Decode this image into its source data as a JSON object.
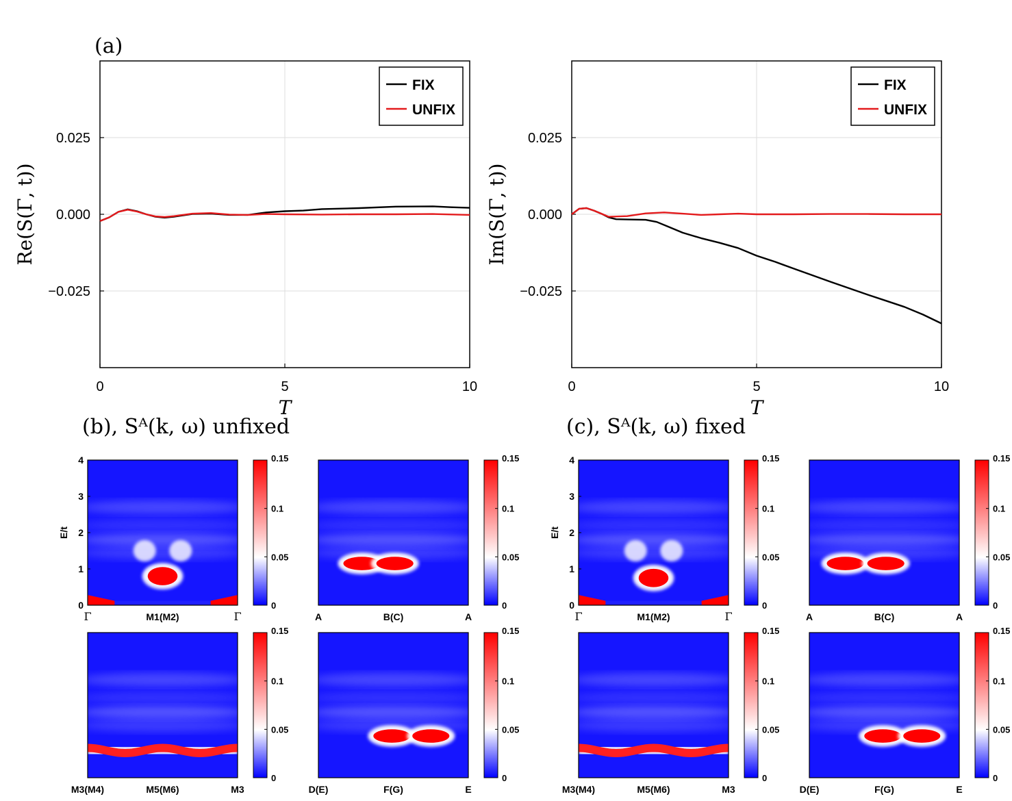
{
  "colors": {
    "fix": "#000000",
    "unfix": "#e31a1c",
    "cmap_low": "#0000ff",
    "cmap_mid": "#ffffff",
    "cmap_high": "#ff0000"
  },
  "panel_a_label": "(a)",
  "panel_b_label": "(b), Sᴬ(k, ω) unfixed",
  "panel_c_label": "(c), Sᴬ(k, ω) fixed",
  "chart_data": [
    {
      "type": "line",
      "id": "re",
      "xlabel": "T",
      "ylabel": "Re(S(Γ, t))",
      "xlim": [
        0,
        10
      ],
      "ylim": [
        -0.05,
        0.05
      ],
      "xticks": [
        "0",
        "5",
        "10"
      ],
      "yticks": [
        "0.025",
        "0.000",
        "−0.025"
      ],
      "grid": true,
      "legend_position": "top-right",
      "series": [
        {
          "name": "FIX",
          "color": "#000000",
          "x": [
            0,
            0.25,
            0.5,
            0.75,
            1.0,
            1.25,
            1.5,
            1.75,
            2.0,
            2.5,
            3.0,
            3.5,
            4.0,
            4.5,
            5.0,
            5.5,
            6.0,
            7.0,
            8.0,
            9.0,
            9.5,
            10.0
          ],
          "y": [
            -0.0022,
            -0.001,
            0.0008,
            0.0016,
            0.001,
            0.0,
            -0.0008,
            -0.0011,
            -0.0008,
            0.0001,
            0.0002,
            -0.0002,
            -0.0002,
            0.0006,
            0.001,
            0.0012,
            0.0017,
            0.002,
            0.0025,
            0.0026,
            0.0023,
            0.0021
          ]
        },
        {
          "name": "UNFIX",
          "color": "#e31a1c",
          "x": [
            0,
            0.25,
            0.5,
            0.75,
            1.0,
            1.25,
            1.5,
            1.75,
            2.0,
            2.5,
            3.0,
            3.5,
            4.0,
            4.5,
            5.0,
            6.0,
            7.0,
            8.0,
            9.0,
            10.0
          ],
          "y": [
            -0.0022,
            -0.001,
            0.0008,
            0.0015,
            0.0009,
            0.0,
            -0.0007,
            -0.0009,
            -0.0006,
            0.0002,
            0.0004,
            -0.0001,
            -0.0002,
            0.0001,
            0.0,
            -0.0001,
            0.0,
            0.0,
            0.0001,
            -0.0002
          ]
        }
      ]
    },
    {
      "type": "line",
      "id": "im",
      "xlabel": "T",
      "ylabel": "Im(S(Γ, t))",
      "xlim": [
        0,
        10
      ],
      "ylim": [
        -0.05,
        0.05
      ],
      "xticks": [
        "0",
        "5",
        "10"
      ],
      "yticks": [
        "0.025",
        "0.000",
        "−0.025"
      ],
      "grid": true,
      "legend_position": "top-right",
      "series": [
        {
          "name": "FIX",
          "color": "#000000",
          "x": [
            0,
            0.2,
            0.4,
            0.6,
            0.8,
            1.0,
            1.2,
            1.5,
            2.0,
            2.3,
            2.6,
            3.0,
            3.5,
            4.0,
            4.5,
            5.0,
            5.5,
            6.0,
            7.0,
            8.0,
            8.5,
            9.0,
            9.5,
            10.0
          ],
          "y": [
            0.0,
            0.0018,
            0.002,
            0.0012,
            0.0002,
            -0.001,
            -0.0016,
            -0.0017,
            -0.0018,
            -0.0025,
            -0.004,
            -0.006,
            -0.0078,
            -0.0093,
            -0.011,
            -0.0135,
            -0.0155,
            -0.0177,
            -0.022,
            -0.0262,
            -0.0282,
            -0.0302,
            -0.0327,
            -0.0356
          ]
        },
        {
          "name": "UNFIX",
          "color": "#e31a1c",
          "x": [
            0,
            0.2,
            0.4,
            0.6,
            0.8,
            1.0,
            1.5,
            2.0,
            2.5,
            3.0,
            3.5,
            4.0,
            4.5,
            5.0,
            6.0,
            7.0,
            8.0,
            9.0,
            10.0
          ],
          "y": [
            0.0,
            0.0018,
            0.002,
            0.0012,
            0.0002,
            -0.0008,
            -0.0006,
            0.0003,
            0.0006,
            0.0002,
            -0.0002,
            0.0,
            0.0002,
            0.0,
            0.0,
            0.0001,
            0.0001,
            0.0,
            0.0
          ]
        }
      ]
    },
    {
      "type": "heatmap",
      "group": "unfixed",
      "ylabel": "E/t",
      "ylim": [
        0,
        4
      ],
      "yticks": [
        "0",
        "1",
        "2",
        "3",
        "4"
      ],
      "colorbar": {
        "range": [
          0,
          0.15
        ],
        "ticks": [
          "0",
          "0.05",
          "0.1",
          "0.15"
        ]
      },
      "panels": [
        {
          "id": "b1",
          "xticks": [
            "Γ",
            "M1(M2)",
            "Γ"
          ],
          "blobs": [
            {
              "x": 0.5,
              "y": 0.8,
              "w": 0.06,
              "h": 0.16,
              "v": 0.18
            },
            {
              "x": 0.38,
              "y": 1.5,
              "w": 0.04,
              "h": 0.2,
              "v": 0.05
            },
            {
              "x": 0.62,
              "y": 1.5,
              "w": 0.04,
              "h": 0.2,
              "v": 0.05
            }
          ]
        },
        {
          "id": "b2",
          "xticks": [
            "A",
            "B(C)",
            "A"
          ],
          "blobs": [
            {
              "x": 0.29,
              "y": 1.15,
              "w": 0.08,
              "h": 0.1,
              "v": 0.16
            },
            {
              "x": 0.51,
              "y": 1.15,
              "w": 0.08,
              "h": 0.1,
              "v": 0.16
            }
          ]
        },
        {
          "id": "b3",
          "xticks": [
            "M3(M4)",
            "M5(M6)",
            "M3"
          ],
          "blobs": []
        },
        {
          "id": "b4",
          "xticks": [
            "D(E)",
            "F(G)",
            "E"
          ],
          "blobs": [
            {
              "x": 0.49,
              "y": 1.15,
              "w": 0.08,
              "h": 0.1,
              "v": 0.16
            },
            {
              "x": 0.75,
              "y": 1.15,
              "w": 0.08,
              "h": 0.1,
              "v": 0.16
            }
          ]
        }
      ]
    },
    {
      "type": "heatmap",
      "group": "fixed",
      "ylabel": "E/t",
      "ylim": [
        0,
        4
      ],
      "yticks": [
        "0",
        "1",
        "2",
        "3",
        "4"
      ],
      "colorbar": {
        "range": [
          0,
          0.15
        ],
        "ticks": [
          "0",
          "0.05",
          "0.1",
          "0.15"
        ]
      },
      "panels": [
        {
          "id": "c1",
          "xticks": [
            "Γ",
            "M1(M2)",
            "Γ"
          ],
          "blobs": [
            {
              "x": 0.5,
              "y": 0.75,
              "w": 0.06,
              "h": 0.16,
              "v": 0.18
            },
            {
              "x": 0.38,
              "y": 1.5,
              "w": 0.04,
              "h": 0.2,
              "v": 0.05
            },
            {
              "x": 0.62,
              "y": 1.5,
              "w": 0.04,
              "h": 0.2,
              "v": 0.05
            }
          ]
        },
        {
          "id": "c2",
          "xticks": [
            "A",
            "B(C)",
            "A"
          ],
          "blobs": [
            {
              "x": 0.24,
              "y": 1.15,
              "w": 0.08,
              "h": 0.1,
              "v": 0.16
            },
            {
              "x": 0.51,
              "y": 1.15,
              "w": 0.08,
              "h": 0.1,
              "v": 0.16
            }
          ]
        },
        {
          "id": "c3",
          "xticks": [
            "M3(M4)",
            "M5(M6)",
            "M3"
          ],
          "blobs": []
        },
        {
          "id": "c4",
          "xticks": [
            "D(E)",
            "F(G)",
            "E"
          ],
          "blobs": [
            {
              "x": 0.49,
              "y": 1.15,
              "w": 0.08,
              "h": 0.1,
              "v": 0.16
            },
            {
              "x": 0.75,
              "y": 1.15,
              "w": 0.08,
              "h": 0.1,
              "v": 0.16
            }
          ]
        }
      ]
    }
  ]
}
